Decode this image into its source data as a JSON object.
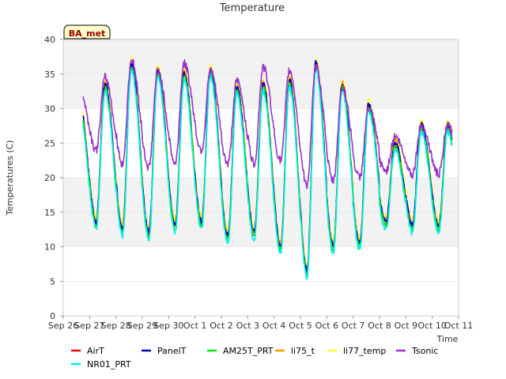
{
  "chart_data": {
    "type": "line",
    "title": "Temperature",
    "xlabel": "Time",
    "ylabel": "Temperatures (C)",
    "badge": "BA_met",
    "ylim": [
      0,
      40
    ],
    "yticks": [
      0,
      5,
      10,
      15,
      20,
      25,
      30,
      35,
      40
    ],
    "xlim": [
      0,
      15
    ],
    "xticks": [
      {
        "v": 0,
        "label": "Sep 26"
      },
      {
        "v": 1,
        "label": "Sep 27"
      },
      {
        "v": 2,
        "label": "Sep 28"
      },
      {
        "v": 3,
        "label": "Sep 29"
      },
      {
        "v": 4,
        "label": "Sep 30"
      },
      {
        "v": 5,
        "label": "Oct 1"
      },
      {
        "v": 6,
        "label": "Oct 2"
      },
      {
        "v": 7,
        "label": "Oct 3"
      },
      {
        "v": 8,
        "label": "Oct 4"
      },
      {
        "v": 9,
        "label": "Oct 5"
      },
      {
        "v": 10,
        "label": "Oct 6"
      },
      {
        "v": 11,
        "label": "Oct 7"
      },
      {
        "v": 12,
        "label": "Oct 8"
      },
      {
        "v": 13,
        "label": "Oct 9"
      },
      {
        "v": 14,
        "label": "Oct 10"
      },
      {
        "v": 15,
        "label": "Oct 11"
      }
    ],
    "grid": true,
    "daily_max": [
      31,
      33,
      36,
      35,
      34.5,
      35,
      32.5,
      33,
      33.5,
      36,
      33,
      30,
      24.5,
      27
    ],
    "daily_min": [
      13,
      13,
      12,
      11.5,
      12.5,
      13,
      11,
      11.5,
      9.5,
      6,
      9.5,
      10,
      13,
      12.5
    ],
    "series": [
      {
        "name": "AirT",
        "color": "#ff0000",
        "offset": 0.3
      },
      {
        "name": "PanelT",
        "color": "#0000bf",
        "offset": 0.6
      },
      {
        "name": "AM25T_PRT",
        "color": "#00ee00",
        "offset": 0.0
      },
      {
        "name": "li75_t",
        "color": "#ff9900",
        "offset": 0.8
      },
      {
        "name": "li77_temp",
        "color": "#ffff33",
        "offset": 1.2
      },
      {
        "name": "Tsonic",
        "color": "#9932cc",
        "offset": 0
      },
      {
        "name": "NR01_PRT",
        "color": "#00eeee",
        "offset": -0.4
      }
    ],
    "tsonic_daily_max": [
      33.5,
      34.5,
      37,
      35.5,
      36.5,
      35.5,
      34,
      36,
      35.5,
      36,
      33,
      30,
      26,
      27.5
    ],
    "tsonic_daily_min": [
      22.5,
      24,
      22,
      21.5,
      22,
      24,
      22,
      22,
      22.5,
      19,
      19.5,
      20,
      21,
      20.5
    ]
  }
}
